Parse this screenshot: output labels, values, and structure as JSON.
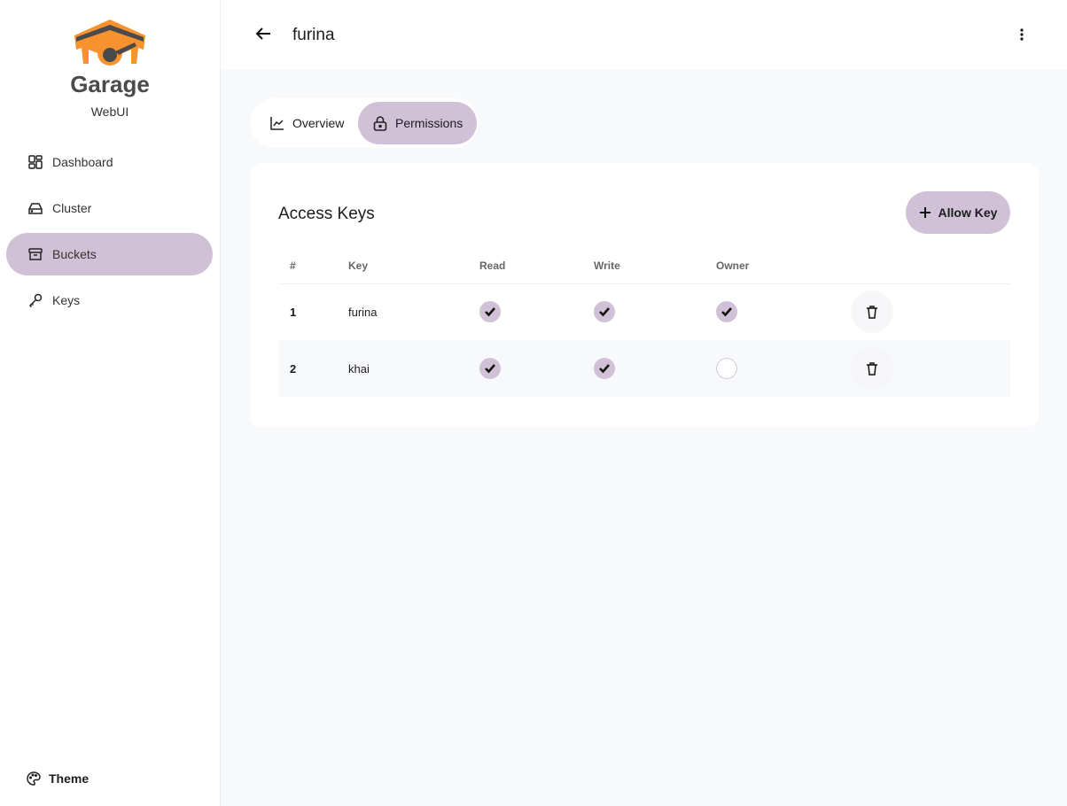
{
  "app": {
    "name": "Garage",
    "subtitle": "WebUI"
  },
  "sidebar": {
    "items": [
      {
        "label": "Dashboard",
        "icon": "dashboard-icon"
      },
      {
        "label": "Cluster",
        "icon": "hard-drive-icon"
      },
      {
        "label": "Buckets",
        "icon": "archive-icon",
        "active": true
      },
      {
        "label": "Keys",
        "icon": "key-icon"
      }
    ],
    "theme_label": "Theme"
  },
  "header": {
    "title": "furina"
  },
  "tabs": [
    {
      "label": "Overview"
    },
    {
      "label": "Permissions",
      "active": true
    }
  ],
  "access_keys": {
    "title": "Access Keys",
    "allow_label": "Allow Key",
    "columns": [
      "#",
      "Key",
      "Read",
      "Write",
      "Owner"
    ],
    "rows": [
      {
        "num": "1",
        "key": "furina",
        "read": true,
        "write": true,
        "owner": true
      },
      {
        "num": "2",
        "key": "khai",
        "read": true,
        "write": true,
        "owner": false
      }
    ]
  },
  "colors": {
    "accent": "#d1c1d7",
    "logo_orange": "#f7922f",
    "logo_dark": "#4a4a4a"
  }
}
